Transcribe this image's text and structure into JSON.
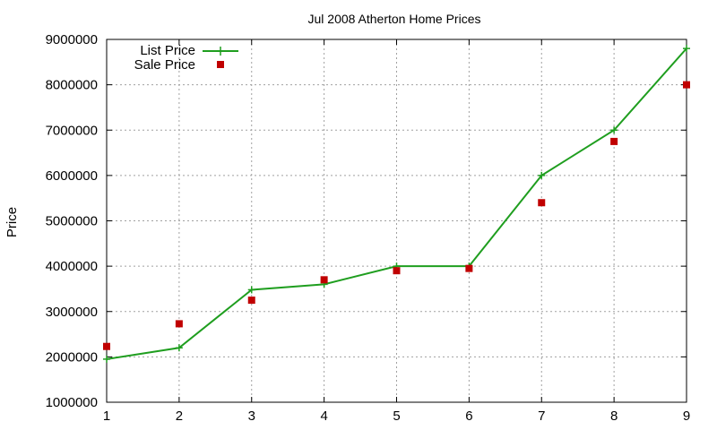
{
  "chart_data": {
    "type": "line",
    "title": "Jul 2008 Atherton Home Prices",
    "xlabel": "",
    "ylabel": "Price",
    "xlim": [
      1,
      9
    ],
    "ylim": [
      1000000,
      9000000
    ],
    "x_ticks": [
      "1",
      "2",
      "3",
      "4",
      "5",
      "6",
      "7",
      "8",
      "9"
    ],
    "y_ticks": [
      "1000000",
      "2000000",
      "3000000",
      "4000000",
      "5000000",
      "6000000",
      "7000000",
      "8000000",
      "9000000"
    ],
    "grid": true,
    "legend_position": "top-left",
    "x": [
      1,
      2,
      3,
      4,
      5,
      6,
      7,
      8,
      9
    ],
    "series": [
      {
        "name": "List Price",
        "style": "line-with-plus-markers",
        "color": "#1f9e1f",
        "values": [
          1950000,
          2200000,
          3480000,
          3600000,
          4000000,
          4000000,
          6000000,
          7000000,
          8800000
        ]
      },
      {
        "name": "Sale Price",
        "style": "square-markers",
        "color": "#c00000",
        "values": [
          2230000,
          2730000,
          3250000,
          3700000,
          3900000,
          3950000,
          5400000,
          6750000,
          8000000
        ]
      }
    ]
  }
}
